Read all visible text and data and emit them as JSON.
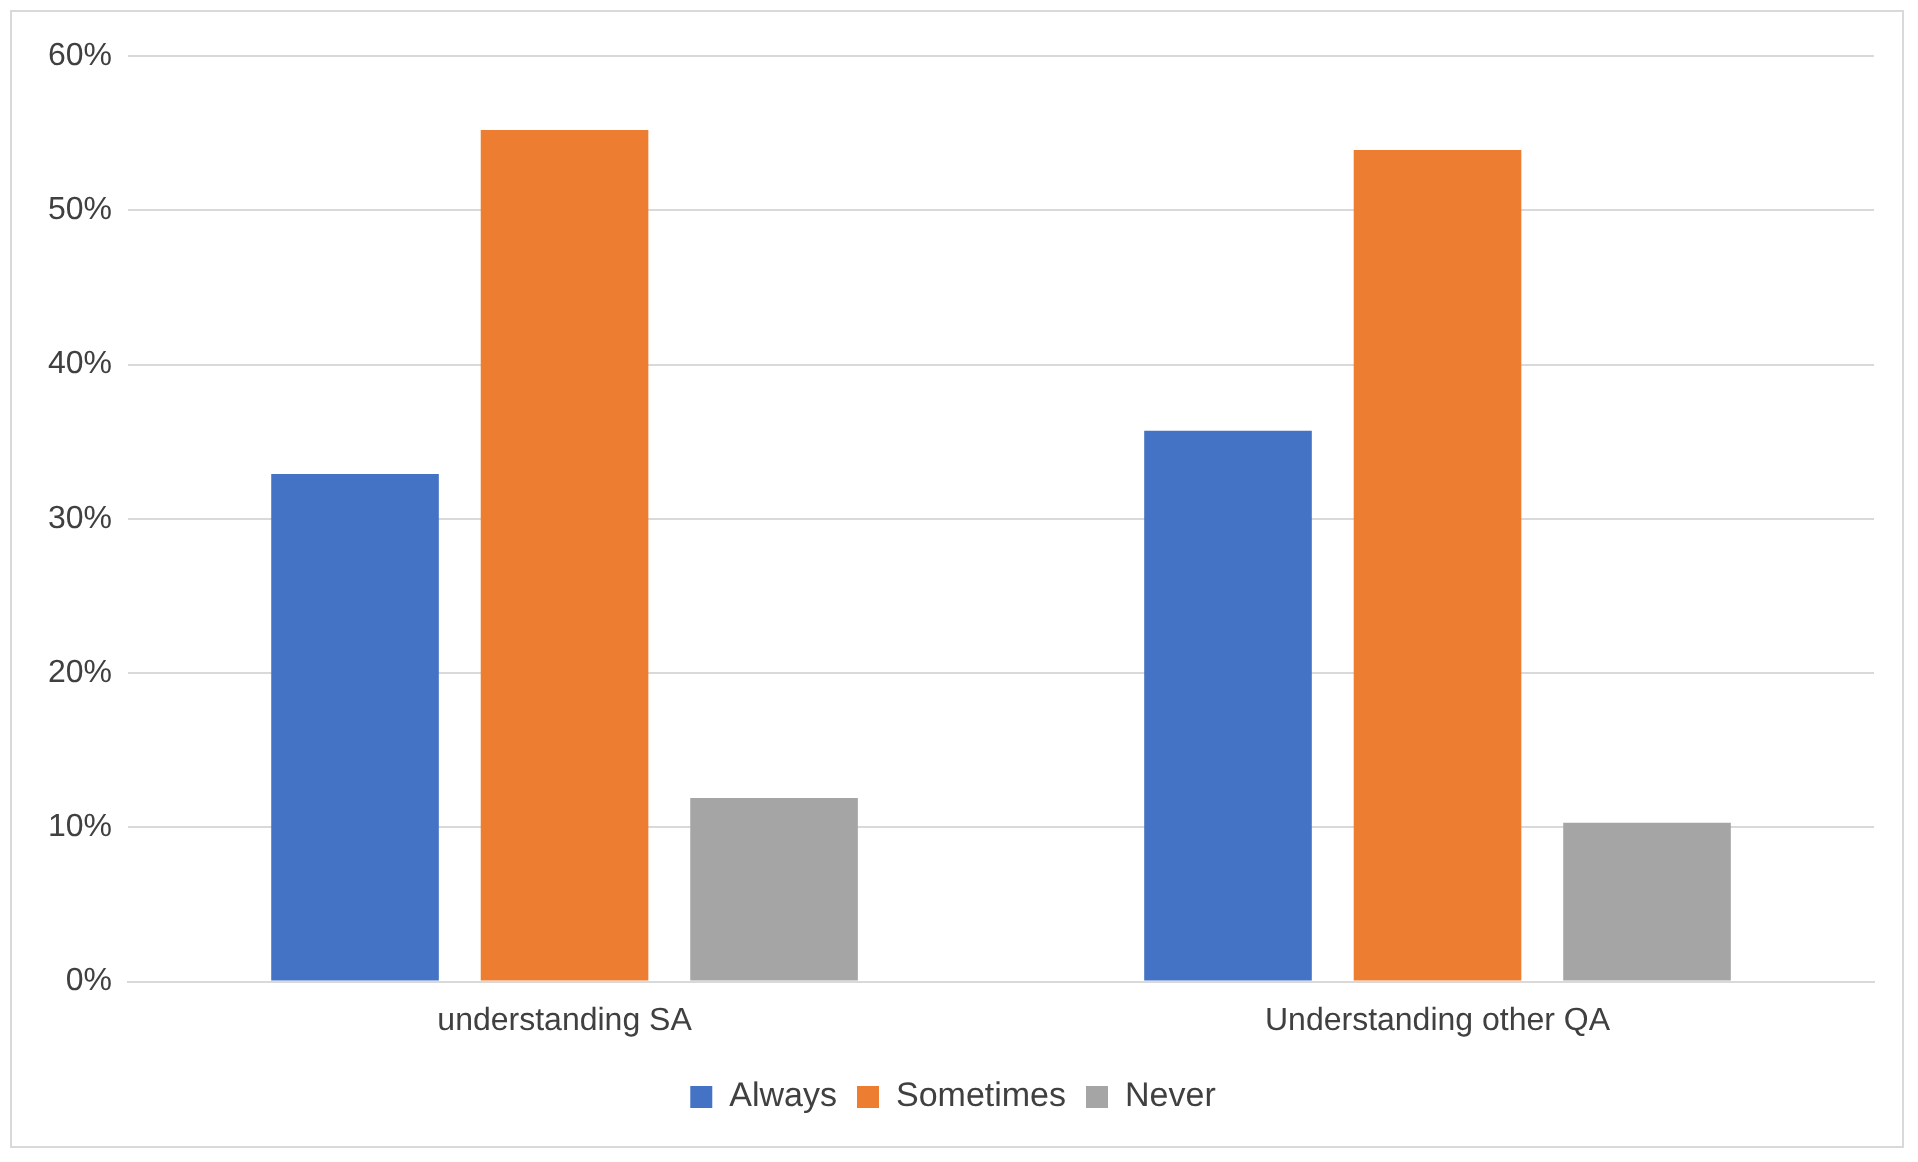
{
  "chart_data": {
    "type": "bar",
    "categories": [
      "understanding SA",
      "Understanding other QA"
    ],
    "series": [
      {
        "name": "Always",
        "color": "#4472c4",
        "values": [
          32.9,
          35.7
        ]
      },
      {
        "name": "Sometimes",
        "color": "#ed7d31",
        "values": [
          55.2,
          53.9
        ]
      },
      {
        "name": "Never",
        "color": "#a5a5a5",
        "values": [
          11.9,
          10.3
        ]
      }
    ],
    "ylim": [
      0,
      60
    ],
    "yticks": [
      {
        "value": 0,
        "label": "0%"
      },
      {
        "value": 10,
        "label": "10%"
      },
      {
        "value": 20,
        "label": "20%"
      },
      {
        "value": 30,
        "label": "30%"
      },
      {
        "value": 40,
        "label": "40%"
      },
      {
        "value": 50,
        "label": "50%"
      },
      {
        "value": 60,
        "label": "60%"
      }
    ],
    "grid": "y",
    "legend": "bottom"
  }
}
